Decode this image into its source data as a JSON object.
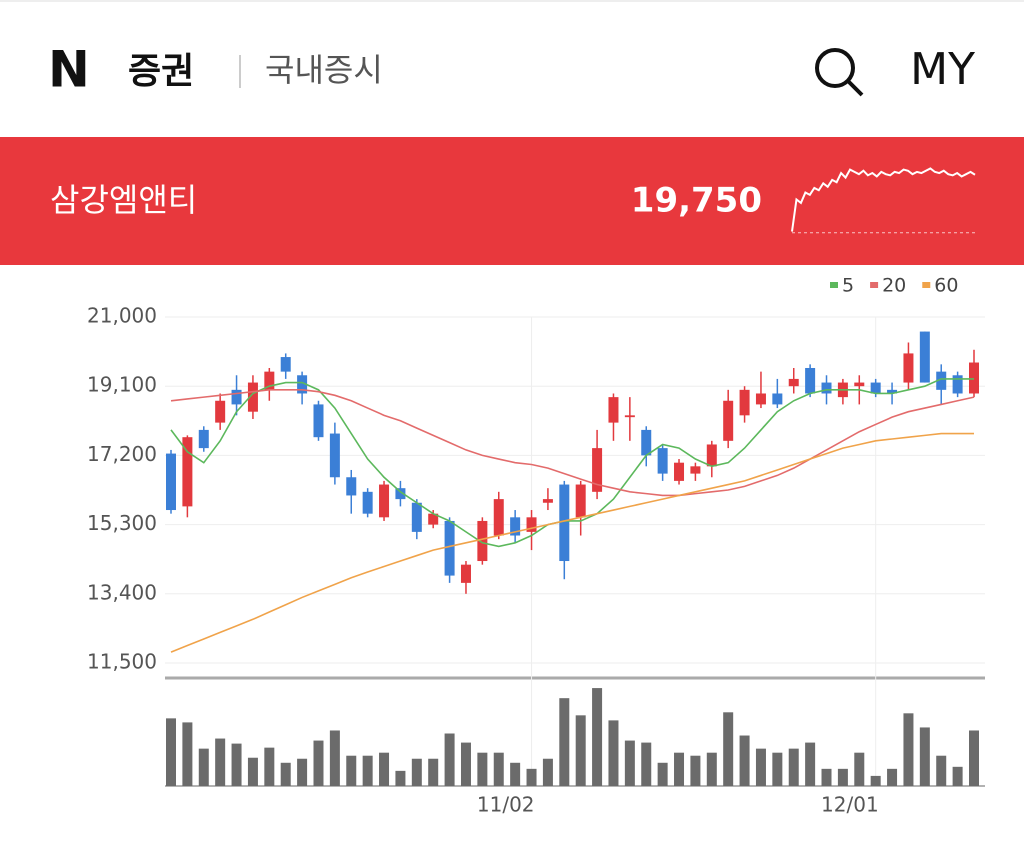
{
  "header": {
    "logo": "N",
    "service": "증권",
    "section": "국내증시",
    "my": "MY"
  },
  "stock": {
    "name": "삼강엠앤티",
    "price": "19,750",
    "sparkline": {
      "values": [
        14800,
        17600,
        17300,
        18200,
        18000,
        18600,
        18400,
        19000,
        18700,
        19300,
        19100,
        19900,
        19500,
        20200,
        20000,
        19800,
        20100,
        19700,
        19900,
        19600,
        20000,
        19800,
        19700,
        20000,
        19900,
        20200,
        20100,
        19800,
        20000,
        19900,
        20100,
        20300,
        20000,
        19900,
        20100,
        19800,
        19700,
        19900,
        19600,
        19800,
        20000,
        19750
      ],
      "ylim": [
        14500,
        20600
      ],
      "baseline": 14700,
      "color": "#ffffff"
    }
  },
  "chart_data": {
    "type": "candlestick",
    "categories": [
      null,
      null,
      null,
      null,
      null,
      null,
      null,
      null,
      null,
      null,
      null,
      null,
      null,
      null,
      null,
      null,
      null,
      null,
      null,
      null,
      null,
      null,
      "11/02",
      null,
      null,
      null,
      null,
      null,
      null,
      null,
      null,
      null,
      null,
      null,
      null,
      null,
      null,
      null,
      null,
      null,
      null,
      null,
      null,
      "12/01",
      null,
      null,
      null,
      null,
      null,
      null
    ],
    "open": [
      17250,
      15800,
      17900,
      18100,
      19000,
      18400,
      19000,
      19900,
      19400,
      18600,
      17800,
      16600,
      16200,
      15500,
      16300,
      15900,
      15300,
      15400,
      13700,
      14300,
      15000,
      15500,
      15100,
      15900,
      16400,
      15500,
      16200,
      18100,
      18250,
      17900,
      17400,
      16500,
      16700,
      16900,
      17600,
      18300,
      18600,
      18900,
      19100,
      19600,
      19200,
      18800,
      19100,
      19200,
      19000,
      19200,
      20600,
      19500,
      19400,
      18900
    ],
    "high": [
      17350,
      17750,
      18000,
      18900,
      19400,
      19400,
      19600,
      20000,
      19500,
      18700,
      18100,
      16800,
      16300,
      16500,
      16500,
      16000,
      15700,
      15500,
      14300,
      15500,
      16200,
      15700,
      15700,
      16300,
      16500,
      16500,
      17900,
      18900,
      18800,
      18000,
      17500,
      17100,
      17000,
      17600,
      19000,
      19100,
      19500,
      19300,
      19600,
      19700,
      19400,
      19300,
      19400,
      19300,
      19200,
      20300,
      20600,
      19700,
      19500,
      20100
    ],
    "low": [
      15600,
      15500,
      17300,
      17900,
      18300,
      18200,
      18700,
      19300,
      18600,
      17600,
      16400,
      15600,
      15500,
      15400,
      15800,
      14900,
      15200,
      13700,
      13400,
      14200,
      14900,
      14800,
      14600,
      15700,
      13800,
      15000,
      16000,
      17600,
      17600,
      16900,
      16500,
      16400,
      16500,
      16600,
      17400,
      18100,
      18500,
      18500,
      18900,
      18800,
      18600,
      18600,
      18600,
      18800,
      18600,
      19000,
      19200,
      18600,
      18800,
      18800
    ],
    "close": [
      15700,
      17700,
      17400,
      18700,
      18600,
      19200,
      19500,
      19500,
      18900,
      17700,
      16600,
      16100,
      15600,
      16400,
      16000,
      15100,
      15600,
      13900,
      14200,
      15400,
      16000,
      15000,
      15500,
      16000,
      14300,
      16400,
      17400,
      18800,
      18300,
      17200,
      16700,
      17000,
      16900,
      17500,
      18700,
      19000,
      18900,
      18600,
      19300,
      18900,
      18900,
      19200,
      19200,
      18900,
      18900,
      20000,
      19200,
      19000,
      18900,
      19750
    ],
    "up_color": "#e2393e",
    "down_color": "#3b7fd6",
    "series": [
      {
        "name": "5",
        "color": "#5cb85c",
        "values": [
          17900,
          17300,
          17000,
          17600,
          18400,
          18900,
          19100,
          19200,
          19200,
          19000,
          18500,
          17800,
          17100,
          16600,
          16200,
          15900,
          15600,
          15400,
          15100,
          14800,
          14700,
          14800,
          15000,
          15300,
          15400,
          15400,
          15600,
          16000,
          16600,
          17200,
          17500,
          17400,
          17100,
          16900,
          17000,
          17400,
          17900,
          18400,
          18700,
          18900,
          19000,
          19000,
          19000,
          18900,
          18900,
          19000,
          19100,
          19300,
          19300,
          19300
        ]
      },
      {
        "name": "20",
        "color": "#e36b6b",
        "values": [
          18700,
          18750,
          18800,
          18850,
          18900,
          18950,
          19000,
          19000,
          19000,
          18950,
          18850,
          18700,
          18500,
          18300,
          18150,
          17950,
          17750,
          17550,
          17350,
          17200,
          17100,
          17000,
          16950,
          16850,
          16700,
          16550,
          16400,
          16300,
          16200,
          16150,
          16100,
          16100,
          16150,
          16200,
          16250,
          16350,
          16500,
          16650,
          16850,
          17100,
          17350,
          17600,
          17850,
          18050,
          18250,
          18400,
          18500,
          18600,
          18700,
          18800
        ]
      },
      {
        "name": "60",
        "color": "#f0a34a",
        "values": [
          11800,
          11980,
          12160,
          12340,
          12520,
          12700,
          12900,
          13100,
          13300,
          13480,
          13660,
          13840,
          14000,
          14150,
          14300,
          14450,
          14600,
          14700,
          14800,
          14900,
          15000,
          15100,
          15200,
          15300,
          15400,
          15500,
          15600,
          15700,
          15800,
          15900,
          16000,
          16100,
          16200,
          16300,
          16400,
          16500,
          16650,
          16800,
          16950,
          17100,
          17250,
          17400,
          17500,
          17600,
          17650,
          17700,
          17750,
          17800,
          17800,
          17800
        ]
      }
    ],
    "volume": {
      "color": "#6b6b6b",
      "ylim": [
        0,
        105
      ],
      "values": [
        67,
        63,
        37,
        47,
        42,
        28,
        38,
        23,
        27,
        45,
        55,
        30,
        30,
        33,
        15,
        27,
        27,
        52,
        43,
        33,
        33,
        23,
        17,
        27,
        87,
        70,
        97,
        65,
        45,
        43,
        23,
        33,
        30,
        33,
        73,
        50,
        37,
        33,
        37,
        43,
        17,
        17,
        33,
        10,
        17,
        72,
        58,
        30,
        19,
        55
      ]
    },
    "ylim": [
      11500,
      21000
    ],
    "yticks": [
      {
        "value": 11500,
        "label": "11,500"
      },
      {
        "value": 13400,
        "label": "13,400"
      },
      {
        "value": 15300,
        "label": "15,300"
      },
      {
        "value": 17200,
        "label": "17,200"
      },
      {
        "value": 19100,
        "label": "19,100"
      },
      {
        "value": 21000,
        "label": "21,000"
      }
    ],
    "grid": true
  }
}
